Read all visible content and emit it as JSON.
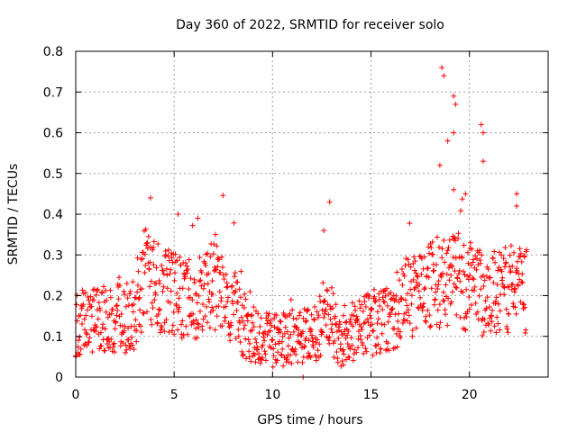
{
  "chart_data": {
    "type": "scatter",
    "title": "Day 360 of 2022, SRMTID for receiver solo",
    "xlabel": "GPS time / hours",
    "ylabel": "SRMTID / TECUs",
    "xlim": [
      0,
      24
    ],
    "ylim": [
      0,
      0.8
    ],
    "x_ticks": [
      0,
      5,
      10,
      15,
      20
    ],
    "x_tick_labels": [
      "0",
      "5",
      "10",
      "15",
      "20"
    ],
    "y_ticks": [
      0,
      0.1,
      0.2,
      0.3,
      0.4,
      0.5,
      0.6,
      0.7,
      0.8
    ],
    "y_tick_labels": [
      "0",
      "0.1",
      "0.2",
      "0.3",
      "0.4",
      "0.5",
      "0.6",
      "0.7",
      "0.8"
    ],
    "grid": true,
    "marker": "+",
    "marker_color": "#ff0000",
    "series": [
      {
        "name": "SRMTID",
        "x_range": [
          0,
          22.9
        ],
        "baseline_profile": [
          [
            0,
            0.13
          ],
          [
            1,
            0.14
          ],
          [
            2,
            0.14
          ],
          [
            3,
            0.15
          ],
          [
            3.5,
            0.25
          ],
          [
            4,
            0.22
          ],
          [
            5,
            0.2
          ],
          [
            6,
            0.19
          ],
          [
            7,
            0.22
          ],
          [
            8,
            0.18
          ],
          [
            8.5,
            0.12
          ],
          [
            9,
            0.11
          ],
          [
            10,
            0.09
          ],
          [
            11,
            0.1
          ],
          [
            12,
            0.11
          ],
          [
            13,
            0.14
          ],
          [
            13.5,
            0.08
          ],
          [
            14,
            0.11
          ],
          [
            15,
            0.13
          ],
          [
            16,
            0.15
          ],
          [
            17,
            0.2
          ],
          [
            18,
            0.22
          ],
          [
            19,
            0.25
          ],
          [
            20,
            0.22
          ],
          [
            21,
            0.2
          ],
          [
            22,
            0.22
          ],
          [
            22.9,
            0.22
          ]
        ],
        "highlighted_points": [
          [
            3.8,
            0.44
          ],
          [
            5.2,
            0.4
          ],
          [
            6.2,
            0.39
          ],
          [
            7.1,
            0.35
          ],
          [
            12.6,
            0.36
          ],
          [
            12.9,
            0.43
          ],
          [
            18.6,
            0.76
          ],
          [
            18.7,
            0.74
          ],
          [
            19.2,
            0.69
          ],
          [
            19.3,
            0.67
          ],
          [
            19.2,
            0.6
          ],
          [
            18.9,
            0.58
          ],
          [
            20.6,
            0.62
          ],
          [
            20.7,
            0.6
          ],
          [
            20.7,
            0.53
          ],
          [
            18.5,
            0.52
          ],
          [
            19.2,
            0.46
          ],
          [
            19.8,
            0.45
          ],
          [
            22.4,
            0.45
          ],
          [
            22.4,
            0.42
          ],
          [
            11.55,
            0.0
          ],
          [
            13.6,
            0.03
          ]
        ]
      }
    ]
  }
}
